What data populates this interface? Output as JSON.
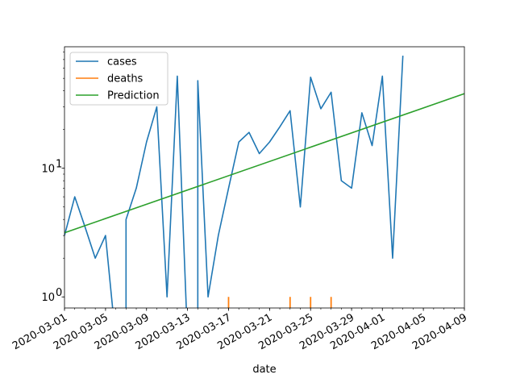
{
  "chart_data": {
    "type": "line",
    "title": "",
    "xlabel": "date",
    "ylabel": "",
    "yscale": "log",
    "ylim": [
      0.82,
      88
    ],
    "xlim": [
      "2020-03-01",
      "2020-04-09"
    ],
    "grid": false,
    "legend_position": "top-left",
    "x_tick_labels": [
      "2020-03-01",
      "2020-03-05",
      "2020-03-09",
      "2020-03-13",
      "2020-03-17",
      "2020-03-21",
      "2020-03-25",
      "2020-03-29",
      "2020-04-01",
      "2020-04-05",
      "2020-04-09"
    ],
    "x_tick_dates": [
      "2020-03-01",
      "2020-03-05",
      "2020-03-09",
      "2020-03-13",
      "2020-03-17",
      "2020-03-21",
      "2020-03-25",
      "2020-03-29",
      "2020-04-01",
      "2020-04-05",
      "2020-04-09"
    ],
    "y_major_ticks": [
      {
        "value": 1,
        "label": "10",
        "sup": "0"
      },
      {
        "value": 10,
        "label": "10",
        "sup": "1"
      }
    ],
    "series": [
      {
        "name": "cases",
        "color": "#1f77b4",
        "dates": [
          "2020-03-01",
          "2020-03-02",
          "2020-03-03",
          "2020-03-04",
          "2020-03-05",
          "2020-03-06",
          "2020-03-07",
          "2020-03-08",
          "2020-03-09",
          "2020-03-10",
          "2020-03-11",
          "2020-03-12",
          "2020-03-13",
          "2020-03-14",
          "2020-03-15",
          "2020-03-16",
          "2020-03-17",
          "2020-03-18",
          "2020-03-19",
          "2020-03-20",
          "2020-03-21",
          "2020-03-22",
          "2020-03-23",
          "2020-03-24",
          "2020-03-25",
          "2020-03-26",
          "2020-03-27",
          "2020-03-28",
          "2020-03-29",
          "2020-03-30",
          "2020-03-31",
          "2020-04-01",
          "2020-04-02",
          "2020-04-03"
        ],
        "values": [
          3,
          6,
          3.5,
          2,
          3,
          0,
          4,
          7,
          16,
          30,
          1,
          52,
          0,
          48,
          1,
          3,
          7,
          16,
          19,
          13,
          16,
          21,
          28,
          5,
          51,
          29,
          39,
          8,
          7,
          27,
          15,
          52,
          2,
          75
        ]
      },
      {
        "name": "deaths",
        "color": "#ff7f0e",
        "dates": [
          "2020-03-17",
          "2020-03-23",
          "2020-03-25",
          "2020-03-27"
        ],
        "values": [
          1,
          1,
          1,
          1
        ]
      },
      {
        "name": "Prediction",
        "color": "#2ca02c",
        "dates": [
          "2020-03-01",
          "2020-04-09"
        ],
        "values": [
          3.15,
          38
        ]
      }
    ]
  }
}
